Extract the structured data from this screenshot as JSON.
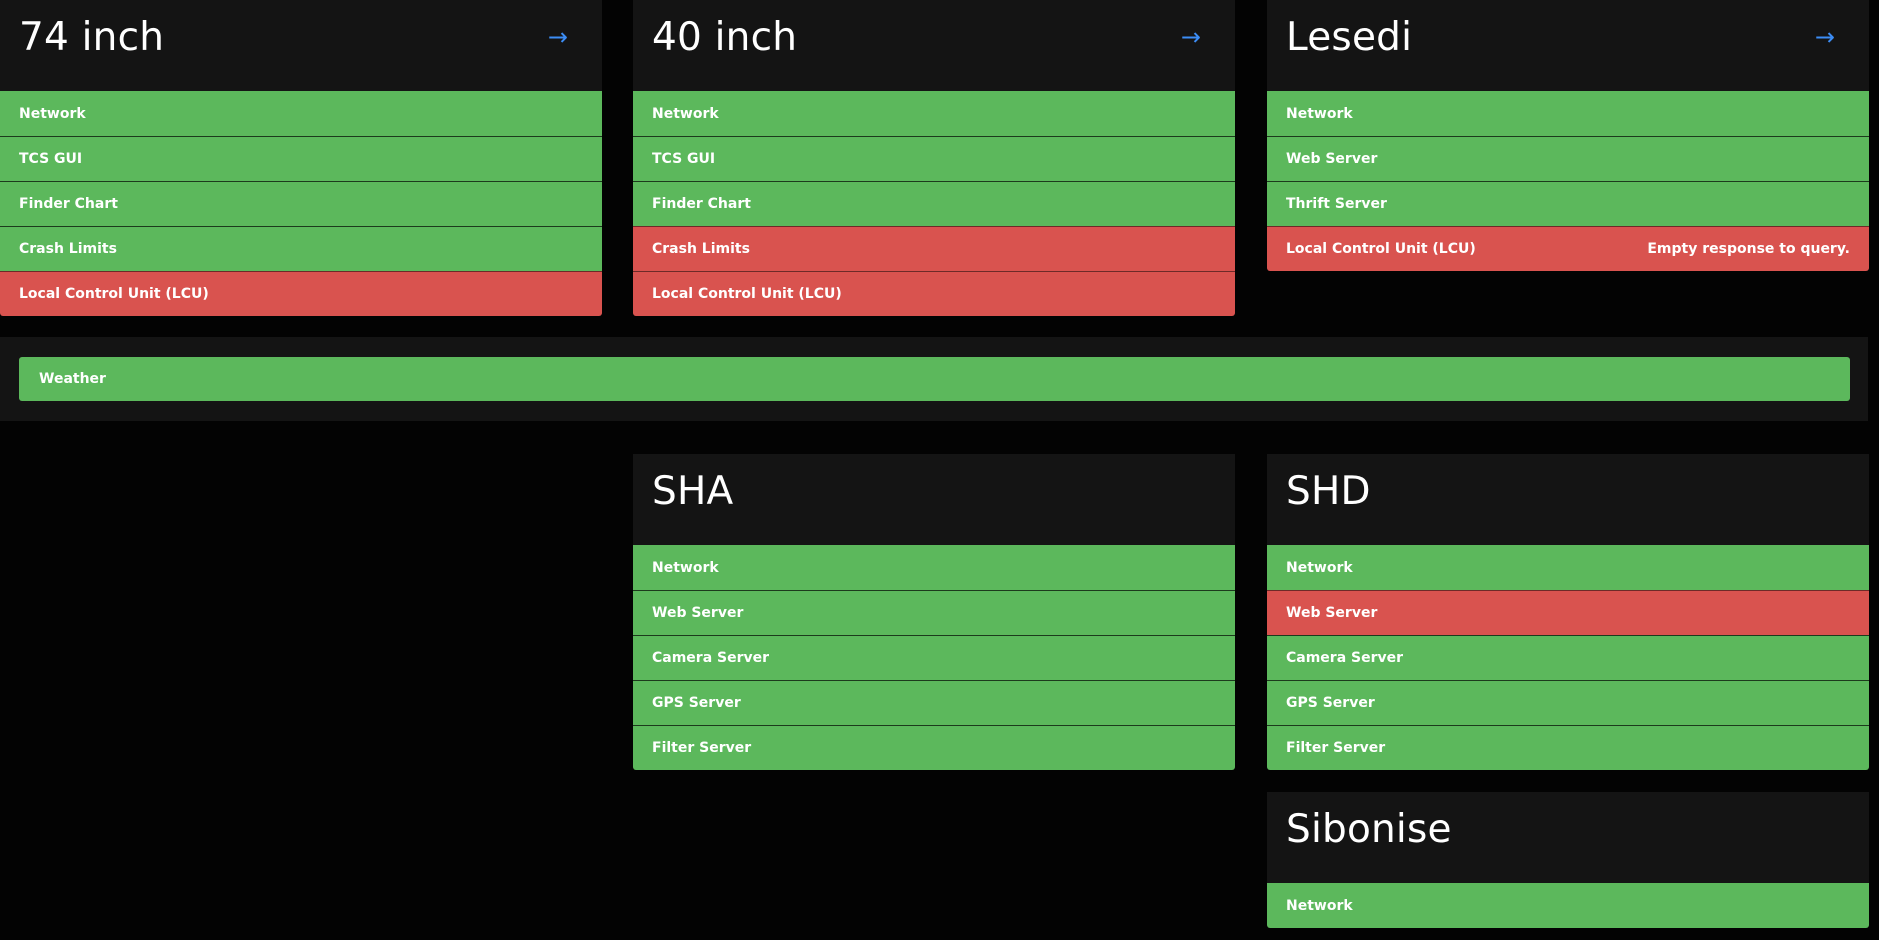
{
  "arrow_glyph": "→",
  "colors": {
    "ok": "#5cb85c",
    "error": "#d9534f",
    "panel": "#141414",
    "background": "#030303",
    "link": "#3c8df5"
  },
  "telescopes": [
    {
      "title": "74 inch",
      "has_link": true,
      "checks": [
        {
          "label": "Network",
          "status": "ok",
          "message": ""
        },
        {
          "label": "TCS GUI",
          "status": "ok",
          "message": ""
        },
        {
          "label": "Finder Chart",
          "status": "ok",
          "message": ""
        },
        {
          "label": "Crash Limits",
          "status": "ok",
          "message": ""
        },
        {
          "label": "Local Control Unit (LCU)",
          "status": "error",
          "message": ""
        }
      ]
    },
    {
      "title": "40 inch",
      "has_link": true,
      "checks": [
        {
          "label": "Network",
          "status": "ok",
          "message": ""
        },
        {
          "label": "TCS GUI",
          "status": "ok",
          "message": ""
        },
        {
          "label": "Finder Chart",
          "status": "ok",
          "message": ""
        },
        {
          "label": "Crash Limits",
          "status": "error",
          "message": ""
        },
        {
          "label": "Local Control Unit (LCU)",
          "status": "error",
          "message": ""
        }
      ]
    },
    {
      "title": "Lesedi",
      "has_link": true,
      "checks": [
        {
          "label": "Network",
          "status": "ok",
          "message": ""
        },
        {
          "label": "Web Server",
          "status": "ok",
          "message": ""
        },
        {
          "label": "Thrift Server",
          "status": "ok",
          "message": ""
        },
        {
          "label": "Local Control Unit (LCU)",
          "status": "error",
          "message": "Empty response to query."
        }
      ]
    },
    {
      "title": "SHA",
      "has_link": false,
      "checks": [
        {
          "label": "Network",
          "status": "ok",
          "message": ""
        },
        {
          "label": "Web Server",
          "status": "ok",
          "message": ""
        },
        {
          "label": "Camera Server",
          "status": "ok",
          "message": ""
        },
        {
          "label": "GPS Server",
          "status": "ok",
          "message": ""
        },
        {
          "label": "Filter Server",
          "status": "ok",
          "message": ""
        }
      ]
    },
    {
      "title": "SHD",
      "has_link": false,
      "checks": [
        {
          "label": "Network",
          "status": "ok",
          "message": ""
        },
        {
          "label": "Web Server",
          "status": "error",
          "message": ""
        },
        {
          "label": "Camera Server",
          "status": "ok",
          "message": ""
        },
        {
          "label": "GPS Server",
          "status": "ok",
          "message": ""
        },
        {
          "label": "Filter Server",
          "status": "ok",
          "message": ""
        }
      ]
    },
    {
      "title": "Sibonise",
      "has_link": false,
      "checks": [
        {
          "label": "Network",
          "status": "ok",
          "message": ""
        }
      ]
    }
  ],
  "weather": {
    "label": "Weather",
    "status": "ok"
  }
}
